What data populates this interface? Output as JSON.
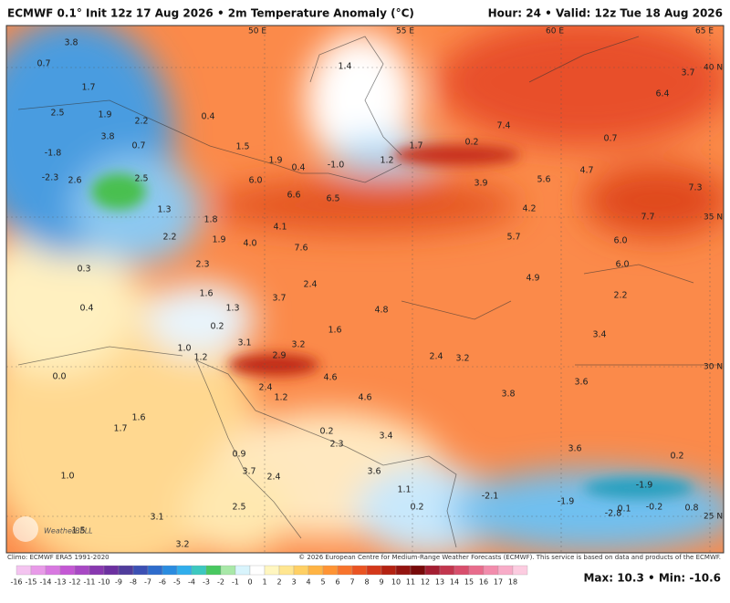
{
  "header": {
    "title": "ECMWF 0.1° Init 12z 17 Aug 2026 • 2m Temperature Anomaly (°C)",
    "valid": "Hour: 24 • Valid: 12z Tue 18 Aug 2026"
  },
  "map": {
    "graticule": [
      "50 E",
      "55 E",
      "60 E",
      "65 E",
      "40 N",
      "35 N",
      "30 N",
      "25 N"
    ],
    "labels": [
      "3.8",
      "0.7",
      "1.7",
      "2.5",
      "1.9",
      "2.2",
      "0.4",
      "3.8",
      "0.7",
      "-1.8",
      "1.5",
      "1.9",
      "0.4",
      "-1.0",
      "1.2",
      "1.7",
      "1.4",
      "0.2",
      "7.4",
      "0.7",
      "6.4",
      "3.7",
      "4.7",
      "7.3",
      "7.7",
      "-2.3",
      "2.6",
      "2.5",
      "6.0",
      "6.6",
      "6.5",
      "3.9",
      "5.6",
      "4.2",
      "1.3",
      "1.8",
      "2.2",
      "4.1",
      "1.9",
      "4.0",
      "7.6",
      "5.7",
      "6.0",
      "0.3",
      "2.3",
      "6.0",
      "2.4",
      "4.9",
      "1.6",
      "3.7",
      "2.2",
      "0.4",
      "1.3",
      "4.8",
      "0.2",
      "1.6",
      "3.4",
      "1.0",
      "3.1",
      "3.2",
      "2.9",
      "2.4",
      "3.2",
      "1.2",
      "0.0",
      "4.6",
      "3.6",
      "2.4",
      "1.2",
      "4.6",
      "3.8",
      "1.6",
      "1.7",
      "0.2",
      "3.4",
      "2.3",
      "0.9",
      "3.6",
      "0.2",
      "3.6",
      "1.0",
      "3.7",
      "2.4",
      "-1.9",
      "1.1",
      "-2.1",
      "-1.9",
      "2.5",
      "0.2",
      "0.1",
      "-0.2",
      "0.8",
      "-2.8",
      "3.1",
      "1.5",
      "3.2"
    ],
    "logo": "WeatherBELL"
  },
  "footer": {
    "climo": "Climo: ECMWF ERA5 1991-2020",
    "credit": "© 2026 European Centre for Medium-Range Weather Forecasts (ECMWF). This service is based on data and products of the ECMWF.",
    "maxmin": "Max: 10.3 • Min: -10.6"
  },
  "colorbar": {
    "ticks": [
      -16,
      -15,
      -14,
      -13,
      -12,
      -11,
      -10,
      -9,
      -8,
      -7,
      -6,
      -5,
      -4,
      -3,
      -2,
      -1,
      0,
      1,
      2,
      3,
      4,
      5,
      6,
      7,
      8,
      9,
      10,
      11,
      12,
      13,
      14,
      15,
      16,
      17,
      18
    ],
    "colors": [
      "#f4c4f0",
      "#e89ae8",
      "#d878e0",
      "#c458d4",
      "#a848c4",
      "#8838b0",
      "#6c30a0",
      "#503c9c",
      "#3c50b4",
      "#2e6ccc",
      "#2a8ce0",
      "#30aeec",
      "#3cc8c0",
      "#48c860",
      "#a8e8a8",
      "#d8f4fc",
      "#ffffff",
      "#fff6c0",
      "#ffe690",
      "#ffd064",
      "#ffb444",
      "#ff9434",
      "#f8742c",
      "#ea5422",
      "#d4381a",
      "#b42212",
      "#941410",
      "#780a0a",
      "#a41e32",
      "#c2364e",
      "#d84e6c",
      "#e86c8c",
      "#f28cac",
      "#f8acc8",
      "#fccce0"
    ]
  }
}
